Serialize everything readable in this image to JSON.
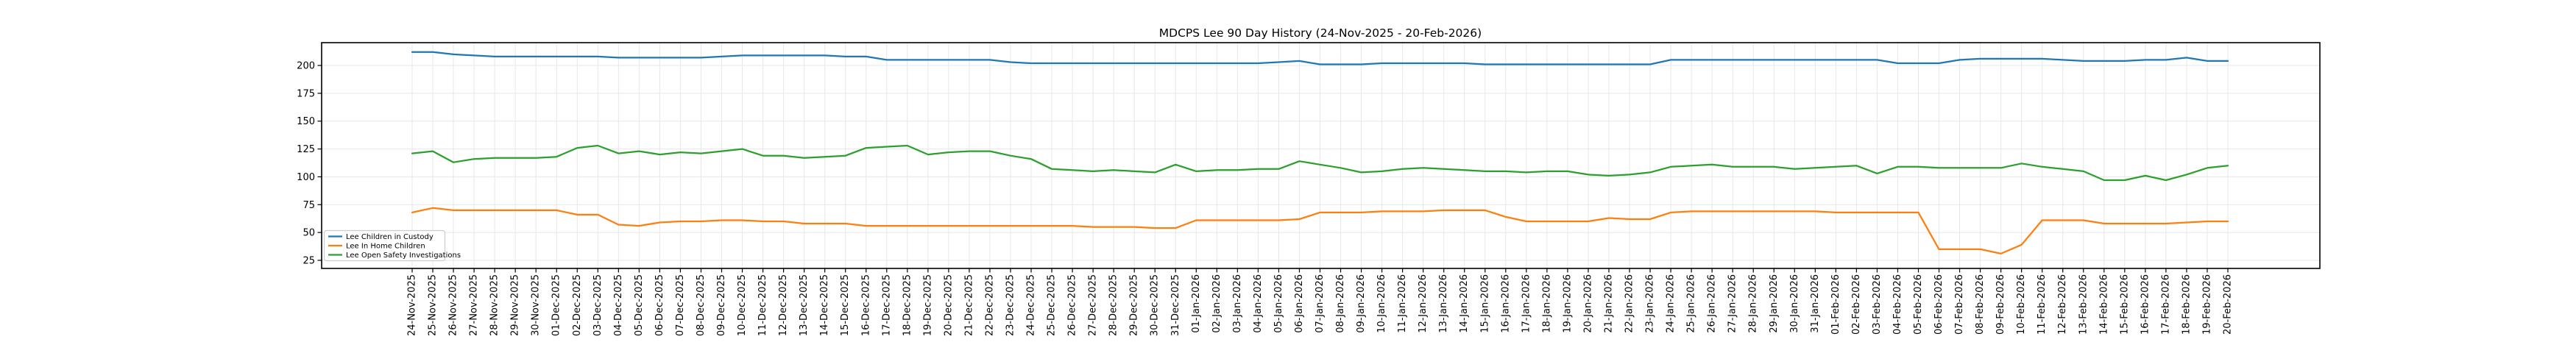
{
  "chart_data": {
    "type": "line",
    "title": "MDCPS Lee 90 Day History (24-Nov-2025 - 20-Feb-2026)",
    "xlabel": "",
    "ylabel": "",
    "grid": true,
    "legend_position": "lower left",
    "ylim": [
      17,
      220
    ],
    "y_ticks": [
      25,
      50,
      75,
      100,
      125,
      150,
      175,
      200
    ],
    "axis_color": "#000000",
    "grid_color": "#e7e7e7",
    "x_tick_labels": [
      "24-Nov-2025",
      "25-Nov-2025",
      "26-Nov-2025",
      "27-Nov-2025",
      "28-Nov-2025",
      "29-Nov-2025",
      "30-Nov-2025",
      "01-Dec-2025",
      "02-Dec-2025",
      "03-Dec-2025",
      "04-Dec-2025",
      "05-Dec-2025",
      "06-Dec-2025",
      "07-Dec-2025",
      "08-Dec-2025",
      "09-Dec-2025",
      "10-Dec-2025",
      "11-Dec-2025",
      "12-Dec-2025",
      "13-Dec-2025",
      "14-Dec-2025",
      "15-Dec-2025",
      "16-Dec-2025",
      "17-Dec-2025",
      "18-Dec-2025",
      "19-Dec-2025",
      "20-Dec-2025",
      "21-Dec-2025",
      "22-Dec-2025",
      "23-Dec-2025",
      "24-Dec-2025",
      "25-Dec-2025",
      "26-Dec-2025",
      "27-Dec-2025",
      "28-Dec-2025",
      "29-Dec-2025",
      "30-Dec-2025",
      "31-Dec-2025",
      "01-Jan-2026",
      "02-Jan-2026",
      "03-Jan-2026",
      "04-Jan-2026",
      "05-Jan-2026",
      "06-Jan-2026",
      "07-Jan-2026",
      "08-Jan-2026",
      "09-Jan-2026",
      "10-Jan-2026",
      "11-Jan-2026",
      "12-Jan-2026",
      "13-Jan-2026",
      "14-Jan-2026",
      "15-Jan-2026",
      "16-Jan-2026",
      "17-Jan-2026",
      "18-Jan-2026",
      "19-Jan-2026",
      "20-Jan-2026",
      "21-Jan-2026",
      "22-Jan-2026",
      "23-Jan-2026",
      "24-Jan-2026",
      "25-Jan-2026",
      "26-Jan-2026",
      "27-Jan-2026",
      "28-Jan-2026",
      "29-Jan-2026",
      "30-Jan-2026",
      "31-Jan-2026",
      "01-Feb-2026",
      "02-Feb-2026",
      "03-Feb-2026",
      "04-Feb-2026",
      "05-Feb-2026",
      "06-Feb-2026",
      "07-Feb-2026",
      "08-Feb-2026",
      "09-Feb-2026",
      "10-Feb-2026",
      "11-Feb-2026",
      "12-Feb-2026",
      "13-Feb-2026",
      "14-Feb-2026",
      "15-Feb-2026",
      "16-Feb-2026",
      "17-Feb-2026",
      "18-Feb-2026",
      "19-Feb-2026",
      "20-Feb-2026"
    ],
    "series": [
      {
        "name": "Lee Children in Custody",
        "color": "#1f77b4",
        "values": [
          212,
          212,
          210,
          209,
          208,
          208,
          208,
          208,
          208,
          208,
          207,
          207,
          207,
          207,
          207,
          208,
          209,
          209,
          209,
          209,
          209,
          208,
          208,
          205,
          205,
          205,
          205,
          205,
          205,
          203,
          202,
          202,
          202,
          202,
          202,
          202,
          202,
          202,
          202,
          202,
          202,
          202,
          203,
          204,
          201,
          201,
          201,
          202,
          202,
          202,
          202,
          202,
          201,
          201,
          201,
          201,
          201,
          201,
          201,
          201,
          201,
          205,
          205,
          205,
          205,
          205,
          205,
          205,
          205,
          205,
          205,
          205,
          202,
          202,
          202,
          205,
          206,
          206,
          206,
          206,
          205,
          204,
          204,
          204,
          205,
          205,
          207,
          204,
          204
        ]
      },
      {
        "name": "Lee In Home Children",
        "color": "#ff7f0e",
        "values": [
          68,
          72,
          70,
          70,
          70,
          70,
          70,
          70,
          66,
          66,
          57,
          56,
          59,
          60,
          60,
          61,
          61,
          60,
          60,
          58,
          58,
          58,
          56,
          56,
          56,
          56,
          56,
          56,
          56,
          56,
          56,
          56,
          56,
          55,
          55,
          55,
          54,
          54,
          61,
          61,
          61,
          61,
          61,
          62,
          68,
          68,
          68,
          69,
          69,
          69,
          70,
          70,
          70,
          64,
          60,
          60,
          60,
          60,
          63,
          62,
          62,
          68,
          69,
          69,
          69,
          69,
          69,
          69,
          69,
          68,
          68,
          68,
          68,
          68,
          35,
          35,
          35,
          31,
          39,
          61,
          61,
          61,
          58,
          58,
          58,
          58,
          59,
          60,
          60
        ]
      },
      {
        "name": "Lee Open Safety Investigations",
        "color": "#2ca02c",
        "values": [
          121,
          123,
          113,
          116,
          117,
          117,
          117,
          118,
          126,
          128,
          121,
          123,
          120,
          122,
          121,
          123,
          125,
          119,
          119,
          117,
          118,
          119,
          126,
          127,
          128,
          120,
          122,
          123,
          123,
          119,
          116,
          107,
          106,
          105,
          106,
          105,
          104,
          111,
          105,
          106,
          106,
          107,
          107,
          114,
          111,
          108,
          104,
          105,
          107,
          108,
          107,
          106,
          105,
          105,
          104,
          105,
          105,
          102,
          101,
          102,
          104,
          109,
          110,
          111,
          109,
          109,
          109,
          107,
          108,
          109,
          110,
          103,
          109,
          109,
          108,
          108,
          108,
          108,
          112,
          109,
          107,
          105,
          97,
          97,
          101,
          97,
          102,
          108,
          110
        ]
      }
    ]
  }
}
